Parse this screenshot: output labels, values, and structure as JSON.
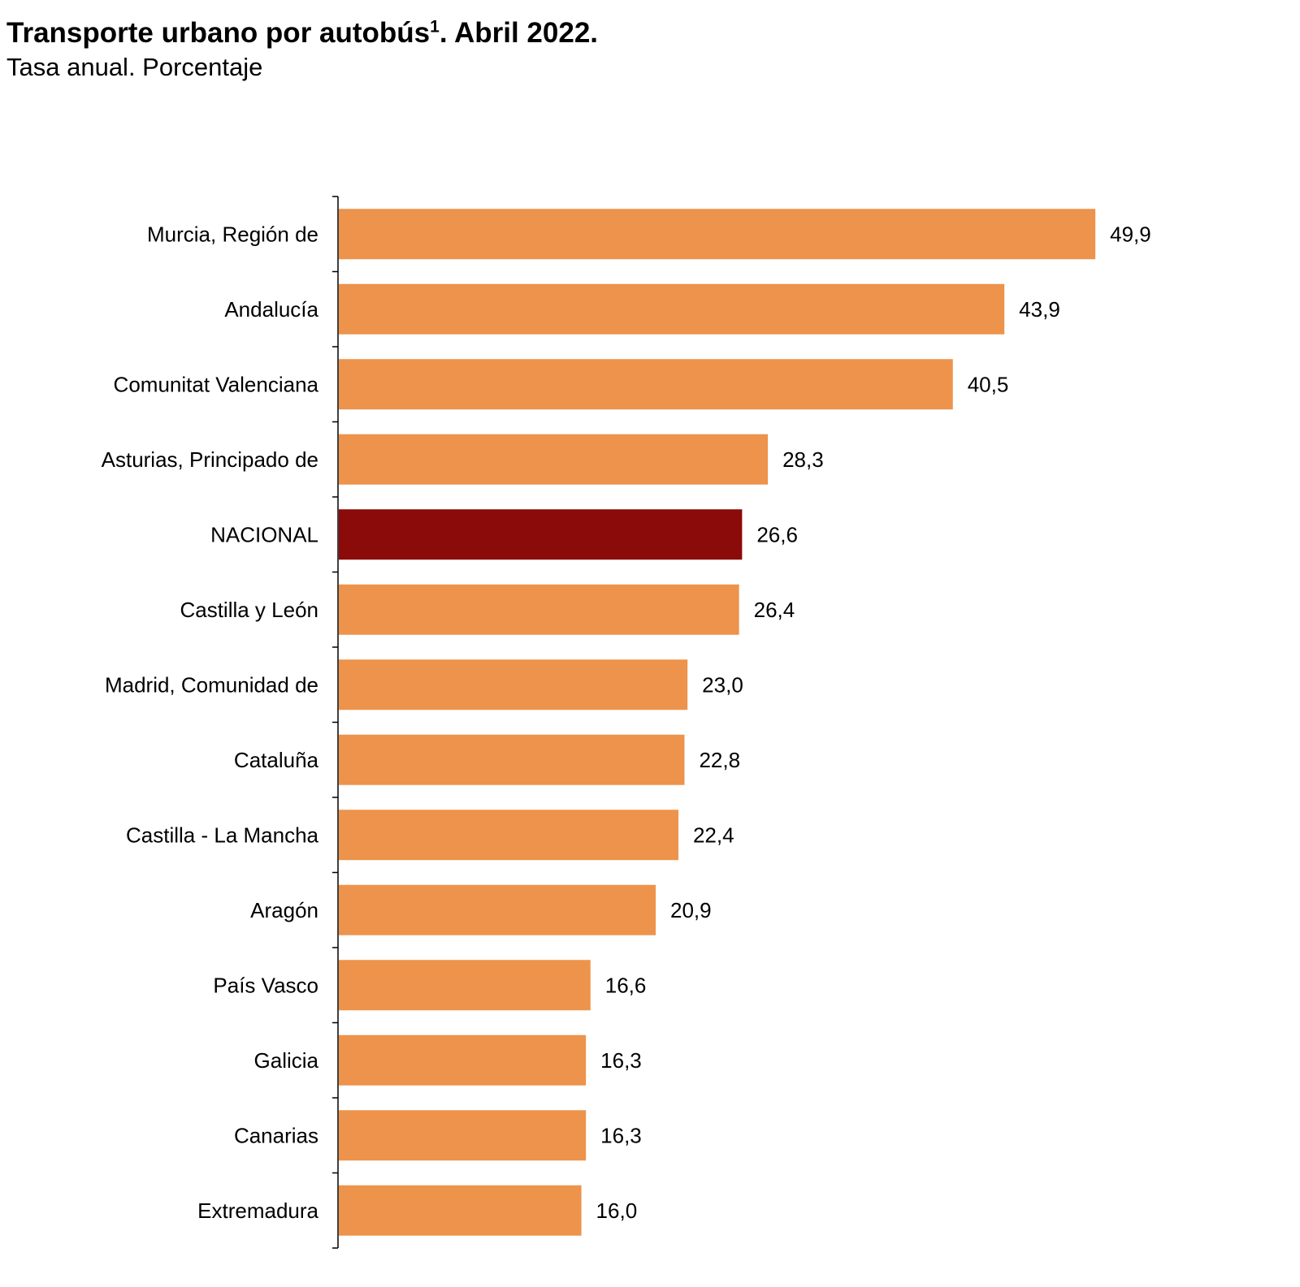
{
  "chart_data": {
    "type": "bar",
    "orientation": "horizontal",
    "title": "Transporte urbano por autobús",
    "title_superscript": "1",
    "title_suffix": ". Abril 2022.",
    "subtitle": "Tasa anual. Porcentaje",
    "xlabel": "",
    "ylabel": "",
    "xlim": [
      0,
      52
    ],
    "grid": false,
    "categories": [
      "Murcia, Región de",
      "Andalucía",
      "Comunitat Valenciana",
      "Asturias, Principado de",
      "NACIONAL",
      "Castilla y León",
      "Madrid, Comunidad de",
      "Cataluña",
      "Castilla - La Mancha",
      "Aragón",
      "País Vasco",
      "Galicia",
      "Canarias",
      "Extremadura"
    ],
    "values": [
      49.9,
      43.9,
      40.5,
      28.3,
      26.6,
      26.4,
      23.0,
      22.8,
      22.4,
      20.9,
      16.6,
      16.3,
      16.3,
      16.0
    ],
    "value_labels": [
      "49,9",
      "43,9",
      "40,5",
      "28,3",
      "26,6",
      "26,4",
      "23,0",
      "22,8",
      "22,4",
      "20,9",
      "16,6",
      "16,3",
      "16,3",
      "16,0"
    ],
    "highlight_category": "NACIONAL",
    "colors": {
      "bar": "#ED934B",
      "highlight": "#8B0A0A",
      "axis": "#000000"
    }
  }
}
